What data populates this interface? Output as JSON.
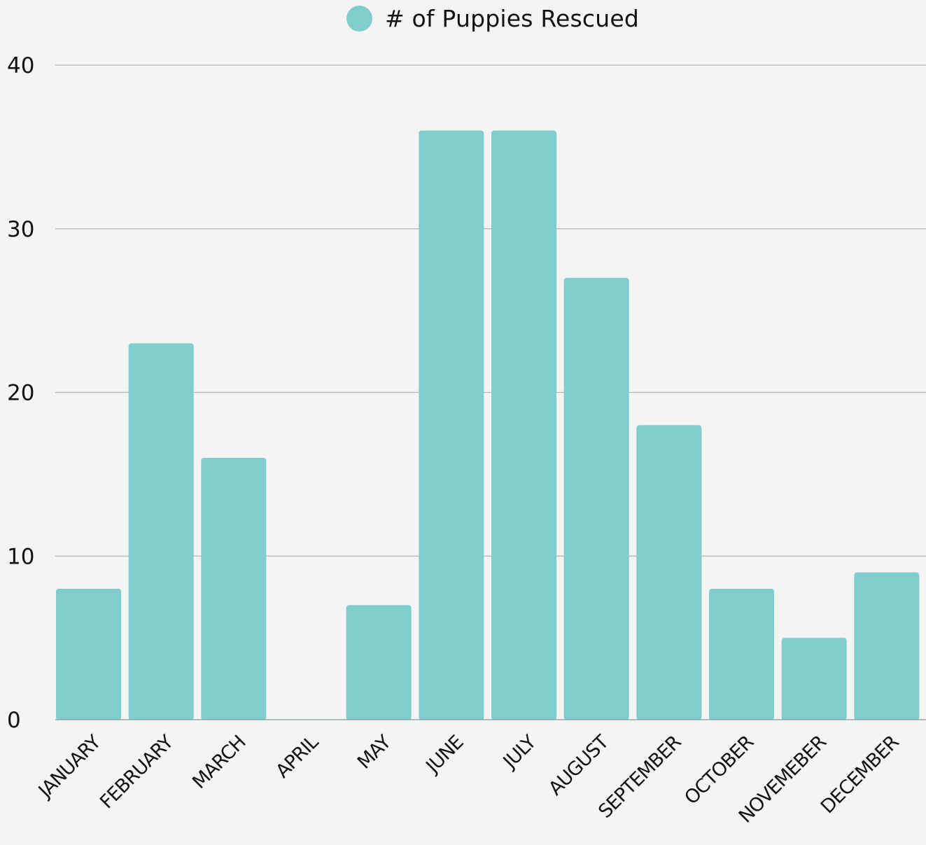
{
  "legend": {
    "label": "# of Puppies Rescued"
  },
  "colors": {
    "bar": "#7fcecd",
    "grid": "#b4b4b4",
    "background": "#f4f4f4",
    "text": "#111111"
  },
  "chart_data": {
    "type": "bar",
    "categories": [
      "JANUARY",
      "FEBRUARY",
      "MARCH",
      "APRIL",
      "MAY",
      "JUNE",
      "JULY",
      "AUGUST",
      "SEPTEMBER",
      "OCTOBER",
      "NOVEMEBER",
      "DECEMBER"
    ],
    "series": [
      {
        "name": "# of Puppies Rescued",
        "values": [
          8,
          23,
          16,
          0,
          7,
          36,
          36,
          27,
          18,
          8,
          5,
          9
        ]
      }
    ],
    "ylim": [
      0,
      40
    ],
    "yticks": [
      0,
      10,
      20,
      30,
      40
    ],
    "grid": true,
    "legend_position": "top-center"
  }
}
